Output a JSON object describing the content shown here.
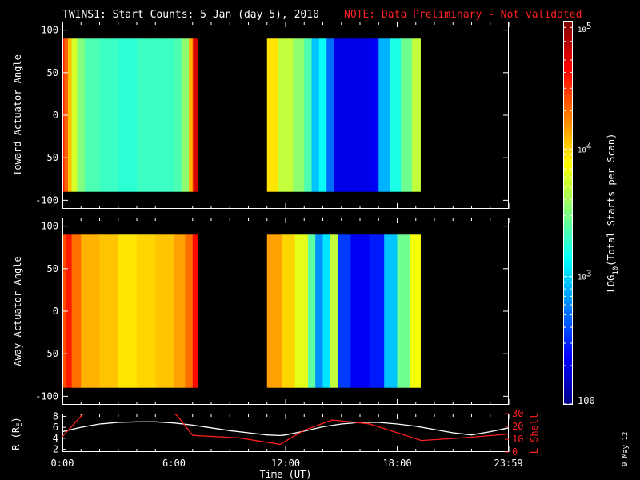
{
  "header": {
    "title": "TWINS1: Start Counts:  5 Jan (day   5), 2010",
    "note": "NOTE: Data Preliminary - Not validated"
  },
  "footer": {
    "date_stamp": "9 May 12"
  },
  "chart_data": [
    {
      "type": "heatmap",
      "ylabel": "Toward Actuator Angle",
      "ylim": [
        -110,
        110
      ],
      "yticks": [
        -100,
        -50,
        0,
        50,
        100
      ],
      "x_range_hours": [
        0,
        24
      ],
      "data_y_range": [
        -90,
        90
      ],
      "segments": [
        {
          "start_h": 0.0,
          "end_h": 7.25,
          "columns": [
            {
              "t": 0.0,
              "v": 4.55
            },
            {
              "t": 0.1,
              "v": 4.35
            },
            {
              "t": 0.3,
              "v": 4.05
            },
            {
              "t": 0.5,
              "v": 3.75
            },
            {
              "t": 0.8,
              "v": 3.5
            },
            {
              "t": 1.2,
              "v": 3.35
            },
            {
              "t": 2.0,
              "v": 3.3
            },
            {
              "t": 3.0,
              "v": 3.25
            },
            {
              "t": 4.0,
              "v": 3.3
            },
            {
              "t": 5.0,
              "v": 3.3
            },
            {
              "t": 6.0,
              "v": 3.35
            },
            {
              "t": 6.4,
              "v": 3.55
            },
            {
              "t": 6.8,
              "v": 4.1
            },
            {
              "t": 7.0,
              "v": 4.5
            },
            {
              "t": 7.1,
              "v": 4.75
            }
          ]
        },
        {
          "start_h": 11.0,
          "end_h": 19.25,
          "columns": [
            {
              "t": 11.0,
              "v": 3.95
            },
            {
              "t": 11.6,
              "v": 3.7
            },
            {
              "t": 12.4,
              "v": 3.55
            },
            {
              "t": 13.0,
              "v": 3.35
            },
            {
              "t": 13.4,
              "v": 2.95
            },
            {
              "t": 13.8,
              "v": 3.15
            },
            {
              "t": 14.2,
              "v": 2.7
            },
            {
              "t": 14.6,
              "v": 2.3
            },
            {
              "t": 15.5,
              "v": 2.3
            },
            {
              "t": 16.5,
              "v": 2.35
            },
            {
              "t": 17.0,
              "v": 2.9
            },
            {
              "t": 17.6,
              "v": 3.2
            },
            {
              "t": 18.2,
              "v": 3.45
            },
            {
              "t": 18.8,
              "v": 3.7
            }
          ]
        }
      ]
    },
    {
      "type": "heatmap",
      "ylabel": "Away Actuator Angle",
      "ylim": [
        -110,
        110
      ],
      "yticks": [
        -100,
        -50,
        0,
        50,
        100
      ],
      "x_range_hours": [
        0,
        24
      ],
      "data_y_range": [
        -90,
        90
      ],
      "segments": [
        {
          "start_h": 0.0,
          "end_h": 7.25,
          "columns": [
            {
              "t": 0.0,
              "v": 4.4
            },
            {
              "t": 0.2,
              "v": 4.55
            },
            {
              "t": 0.5,
              "v": 4.3
            },
            {
              "t": 1.0,
              "v": 4.1
            },
            {
              "t": 2.0,
              "v": 4.05
            },
            {
              "t": 3.0,
              "v": 3.95
            },
            {
              "t": 4.0,
              "v": 4.0
            },
            {
              "t": 5.0,
              "v": 4.05
            },
            {
              "t": 6.0,
              "v": 4.15
            },
            {
              "t": 6.6,
              "v": 4.3
            },
            {
              "t": 7.0,
              "v": 4.6
            }
          ]
        },
        {
          "start_h": 11.0,
          "end_h": 19.25,
          "columns": [
            {
              "t": 11.0,
              "v": 4.15
            },
            {
              "t": 11.8,
              "v": 4.0
            },
            {
              "t": 12.5,
              "v": 3.8
            },
            {
              "t": 13.2,
              "v": 3.4
            },
            {
              "t": 13.6,
              "v": 2.8
            },
            {
              "t": 14.0,
              "v": 3.05
            },
            {
              "t": 14.4,
              "v": 3.7
            },
            {
              "t": 14.8,
              "v": 2.55
            },
            {
              "t": 15.5,
              "v": 2.35
            },
            {
              "t": 16.5,
              "v": 2.45
            },
            {
              "t": 17.3,
              "v": 2.95
            },
            {
              "t": 18.0,
              "v": 3.45
            },
            {
              "t": 18.7,
              "v": 3.85
            }
          ]
        }
      ]
    },
    {
      "type": "line",
      "xlabel": "Time (UT)",
      "x_ticks": [
        "0:00",
        "6:00",
        "12:00",
        "18:00",
        "23:59"
      ],
      "x_tick_hours": [
        0,
        6,
        12,
        18,
        23.983
      ],
      "left_axis": {
        "label": "R (R",
        "subscript": "E",
        "suffix": ")",
        "ylim": [
          1.5,
          8.5
        ],
        "ticks": [
          2,
          4,
          6,
          8
        ]
      },
      "right_axis": {
        "label": "L Shell",
        "ylim": [
          0,
          30
        ],
        "ticks": [
          0,
          10,
          20,
          30
        ]
      },
      "series": [
        {
          "axis": "left",
          "color": "#ffffff",
          "x": [
            0,
            1,
            2,
            3,
            4,
            5,
            6,
            7,
            8,
            9,
            10,
            11,
            11.7,
            12,
            13,
            14,
            15,
            16,
            17,
            18,
            19,
            20,
            21,
            22,
            23,
            24
          ],
          "y": [
            5.2,
            6.0,
            6.6,
            6.9,
            7.0,
            7.0,
            6.8,
            6.4,
            5.9,
            5.4,
            5.0,
            4.6,
            4.5,
            4.6,
            5.3,
            6.1,
            6.6,
            6.9,
            6.9,
            6.6,
            6.2,
            5.6,
            5.0,
            4.6,
            5.2,
            5.9
          ]
        },
        {
          "axis": "right",
          "color": "#ff2020",
          "x": [
            0,
            1.5,
            5.5,
            6.2,
            7.0,
            9.5,
            11.7,
            13.0,
            14.5,
            16.5,
            19.3,
            21.5,
            24
          ],
          "y": [
            12,
            36,
            36,
            28,
            13,
            11,
            6,
            17,
            25,
            22,
            9,
            11,
            14
          ]
        }
      ]
    }
  ],
  "colorbar": {
    "title_prefix": "LOG",
    "title_sub": "10",
    "title_suffix": "(Total Starts per Scan)",
    "scale": "log",
    "range": [
      100,
      100000
    ],
    "tick_bottom": "100",
    "tick_labels": [
      {
        "value": 1000,
        "base": "10",
        "exp": "3"
      },
      {
        "value": 10000,
        "base": "10",
        "exp": "4"
      },
      {
        "value": 100000,
        "base": "10",
        "exp": "5"
      }
    ]
  }
}
